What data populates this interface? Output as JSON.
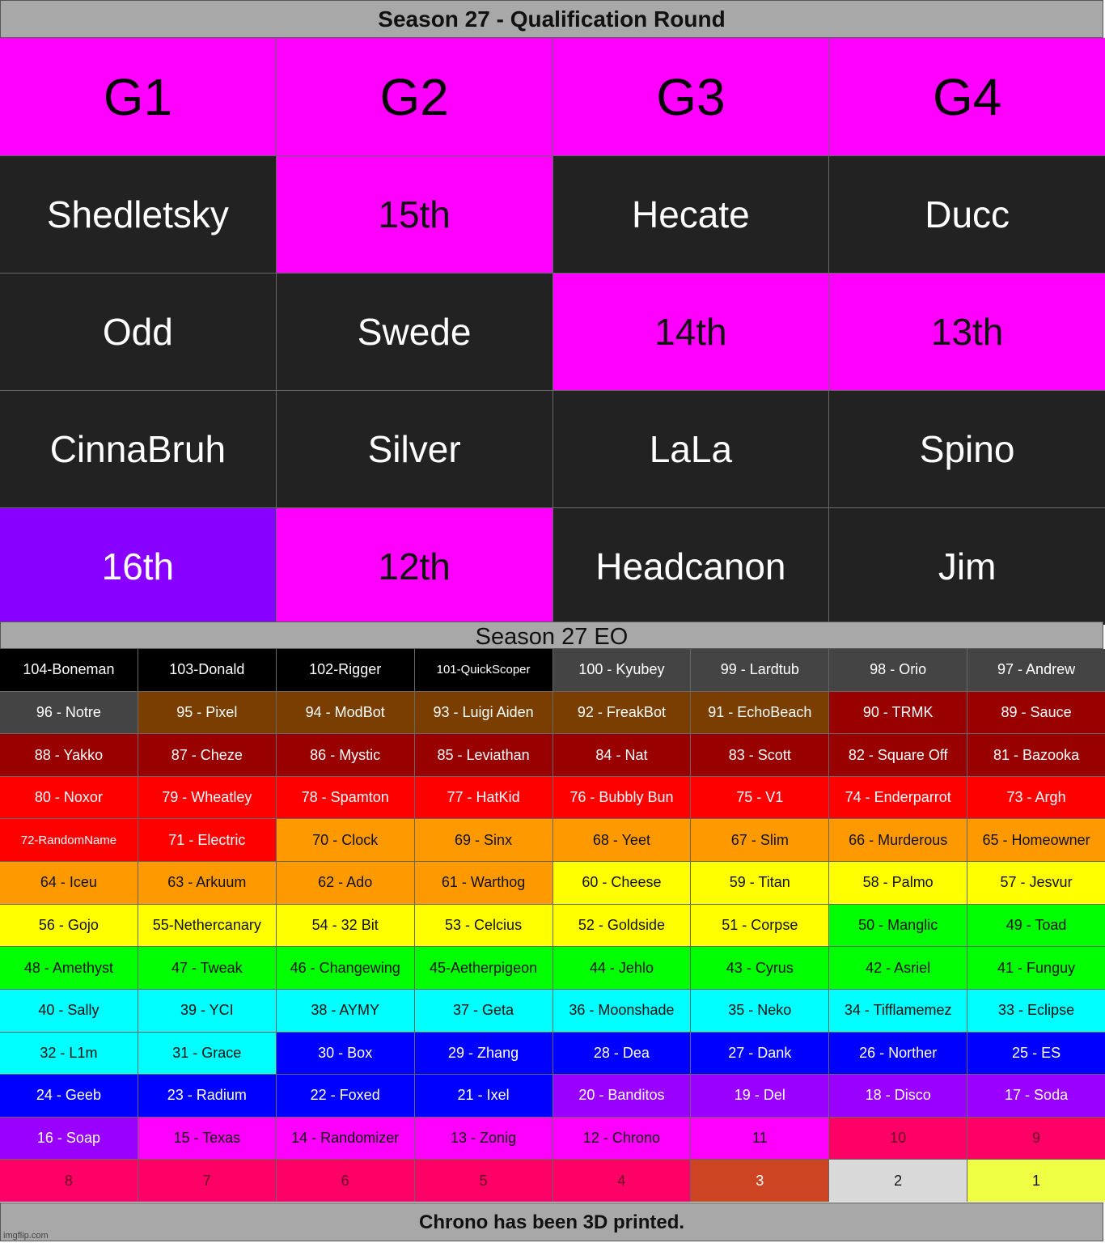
{
  "title": "Season 27 - Qualification Round",
  "colors": {
    "magenta": "#ff00ff",
    "dark": "#222222",
    "purple": "#8800ff",
    "black": "#000000",
    "gray": "#444444",
    "brown": "#7a3f00",
    "darkred": "#990000",
    "red": "#ff0000",
    "orange": "#ff9900",
    "yellow": "#ffff00",
    "green": "#00ff00",
    "cyan": "#00ffff",
    "blue": "#0000ff",
    "violet": "#9900ff",
    "pink": "#ff00ff",
    "rose": "#ff0066",
    "bronze": "#cc4422",
    "silver": "#d9d9d9",
    "gold": "#eeff44"
  },
  "qualification": {
    "headers": [
      "G1",
      "G2",
      "G3",
      "G4"
    ],
    "rows": [
      [
        {
          "text": "Shedletsky",
          "bg": "dark"
        },
        {
          "text": "15th",
          "bg": "magenta"
        },
        {
          "text": "Hecate",
          "bg": "dark"
        },
        {
          "text": "Ducc",
          "bg": "dark"
        }
      ],
      [
        {
          "text": "Odd",
          "bg": "dark"
        },
        {
          "text": "Swede",
          "bg": "dark"
        },
        {
          "text": "14th",
          "bg": "magenta"
        },
        {
          "text": "13th",
          "bg": "magenta"
        }
      ],
      [
        {
          "text": "CinnaBruh",
          "bg": "dark"
        },
        {
          "text": "Silver",
          "bg": "dark"
        },
        {
          "text": "LaLa",
          "bg": "dark"
        },
        {
          "text": "Spino",
          "bg": "dark"
        }
      ],
      [
        {
          "text": "16th",
          "bg": "purple"
        },
        {
          "text": "12th",
          "bg": "magenta"
        },
        {
          "text": "Headcanon",
          "bg": "dark"
        },
        {
          "text": "Jim",
          "bg": "dark"
        }
      ]
    ]
  },
  "eo_title": "Season 27 EO",
  "eo": [
    [
      {
        "t": "104-Boneman",
        "c": "black"
      },
      {
        "t": "103-Donald",
        "c": "black"
      },
      {
        "t": "102-Rigger",
        "c": "black"
      },
      {
        "t": "101-QuickScoper",
        "c": "black",
        "s": true
      },
      {
        "t": "100 - Kyubey",
        "c": "gray"
      },
      {
        "t": "99 - Lardtub",
        "c": "gray"
      },
      {
        "t": "98 - Orio",
        "c": "gray"
      },
      {
        "t": "97 - Andrew",
        "c": "gray"
      }
    ],
    [
      {
        "t": "96 - Notre",
        "c": "gray"
      },
      {
        "t": "95 - Pixel",
        "c": "brown"
      },
      {
        "t": "94 - ModBot",
        "c": "brown"
      },
      {
        "t": "93 - Luigi Aiden",
        "c": "brown"
      },
      {
        "t": "92 - FreakBot",
        "c": "brown"
      },
      {
        "t": "91 - EchoBeach",
        "c": "brown"
      },
      {
        "t": "90 - TRMK",
        "c": "darkred"
      },
      {
        "t": "89 - Sauce",
        "c": "darkred"
      }
    ],
    [
      {
        "t": "88 - Yakko",
        "c": "darkred"
      },
      {
        "t": "87 - Cheze",
        "c": "darkred"
      },
      {
        "t": "86 - Mystic",
        "c": "darkred"
      },
      {
        "t": "85 - Leviathan",
        "c": "darkred"
      },
      {
        "t": "84 - Nat",
        "c": "darkred"
      },
      {
        "t": "83 - Scott",
        "c": "darkred"
      },
      {
        "t": "82 - Square Off",
        "c": "darkred"
      },
      {
        "t": "81 - Bazooka",
        "c": "darkred"
      }
    ],
    [
      {
        "t": "80 - Noxor",
        "c": "red"
      },
      {
        "t": "79 - Wheatley",
        "c": "red"
      },
      {
        "t": "78 - Spamton",
        "c": "red"
      },
      {
        "t": "77 - HatKid",
        "c": "red"
      },
      {
        "t": "76 - Bubbly Bun",
        "c": "red"
      },
      {
        "t": "75 - V1",
        "c": "red"
      },
      {
        "t": "74 - Enderparrot",
        "c": "red"
      },
      {
        "t": "73 - Argh",
        "c": "red"
      }
    ],
    [
      {
        "t": "72-RandomName",
        "c": "red",
        "s": true
      },
      {
        "t": "71 - Electric",
        "c": "red"
      },
      {
        "t": "70 - Clock",
        "c": "orange"
      },
      {
        "t": "69 - Sinx",
        "c": "orange"
      },
      {
        "t": "68 - Yeet",
        "c": "orange"
      },
      {
        "t": "67 - Slim",
        "c": "orange"
      },
      {
        "t": "66 - Murderous",
        "c": "orange"
      },
      {
        "t": "65 - Homeowner",
        "c": "orange"
      }
    ],
    [
      {
        "t": "64 - Iceu",
        "c": "orange"
      },
      {
        "t": "63 - Arkuum",
        "c": "orange"
      },
      {
        "t": "62 - Ado",
        "c": "orange"
      },
      {
        "t": "61 - Warthog",
        "c": "orange"
      },
      {
        "t": "60 - Cheese",
        "c": "yellow"
      },
      {
        "t": "59 - Titan",
        "c": "yellow"
      },
      {
        "t": "58 - Palmo",
        "c": "yellow"
      },
      {
        "t": "57 - Jesvur",
        "c": "yellow"
      }
    ],
    [
      {
        "t": "56 - Gojo",
        "c": "yellow"
      },
      {
        "t": "55-Nethercanary",
        "c": "yellow"
      },
      {
        "t": "54 - 32 Bit",
        "c": "yellow"
      },
      {
        "t": "53 - Celcius",
        "c": "yellow"
      },
      {
        "t": "52 - Goldside",
        "c": "yellow"
      },
      {
        "t": "51 - Corpse",
        "c": "yellow"
      },
      {
        "t": "50 - Manglic",
        "c": "green"
      },
      {
        "t": "49 - Toad",
        "c": "green"
      }
    ],
    [
      {
        "t": "48 - Amethyst",
        "c": "green"
      },
      {
        "t": "47 - Tweak",
        "c": "green"
      },
      {
        "t": "46 - Changewing",
        "c": "green"
      },
      {
        "t": "45-Aetherpigeon",
        "c": "green"
      },
      {
        "t": "44 - Jehlo",
        "c": "green"
      },
      {
        "t": "43 - Cyrus",
        "c": "green"
      },
      {
        "t": "42 - Asriel",
        "c": "green"
      },
      {
        "t": "41 - Funguy",
        "c": "green"
      }
    ],
    [
      {
        "t": "40 - Sally",
        "c": "cyan"
      },
      {
        "t": "39 - YCI",
        "c": "cyan"
      },
      {
        "t": "38 - AYMY",
        "c": "cyan"
      },
      {
        "t": "37 - Geta",
        "c": "cyan"
      },
      {
        "t": "36 - Moonshade",
        "c": "cyan"
      },
      {
        "t": "35 - Neko",
        "c": "cyan"
      },
      {
        "t": "34 - Tifflamemez",
        "c": "cyan"
      },
      {
        "t": "33 - Eclipse",
        "c": "cyan"
      }
    ],
    [
      {
        "t": "32 - L1m",
        "c": "cyan"
      },
      {
        "t": "31 - Grace",
        "c": "cyan"
      },
      {
        "t": "30 - Box",
        "c": "blue"
      },
      {
        "t": "29 - Zhang",
        "c": "blue"
      },
      {
        "t": "28 - Dea",
        "c": "blue"
      },
      {
        "t": "27 - Dank",
        "c": "blue"
      },
      {
        "t": "26 - Norther",
        "c": "blue"
      },
      {
        "t": "25 - ES",
        "c": "blue"
      }
    ],
    [
      {
        "t": "24 - Geeb",
        "c": "blue"
      },
      {
        "t": "23 - Radium",
        "c": "blue"
      },
      {
        "t": "22 - Foxed",
        "c": "blue"
      },
      {
        "t": "21 - Ixel",
        "c": "blue"
      },
      {
        "t": "20 - Banditos",
        "c": "violet"
      },
      {
        "t": "19 - Del",
        "c": "violet"
      },
      {
        "t": "18 - Disco",
        "c": "violet"
      },
      {
        "t": "17 - Soda",
        "c": "violet"
      }
    ],
    [
      {
        "t": "16 - Soap",
        "c": "violet"
      },
      {
        "t": "15 - Texas",
        "c": "pink"
      },
      {
        "t": "14 - Randomizer",
        "c": "pink"
      },
      {
        "t": "13 - Zonig",
        "c": "pink"
      },
      {
        "t": "12 - Chrono",
        "c": "pink"
      },
      {
        "t": "11",
        "c": "pink"
      },
      {
        "t": "10",
        "c": "rose"
      },
      {
        "t": "9",
        "c": "rose"
      }
    ],
    [
      {
        "t": "8",
        "c": "rose"
      },
      {
        "t": "7",
        "c": "rose"
      },
      {
        "t": "6",
        "c": "rose"
      },
      {
        "t": "5",
        "c": "rose"
      },
      {
        "t": "4",
        "c": "rose"
      },
      {
        "t": "3",
        "c": "bronze"
      },
      {
        "t": "2",
        "c": "silver"
      },
      {
        "t": "1",
        "c": "gold"
      }
    ]
  ],
  "footer": "Chrono has been 3D printed.",
  "watermark": "imgflip.com"
}
